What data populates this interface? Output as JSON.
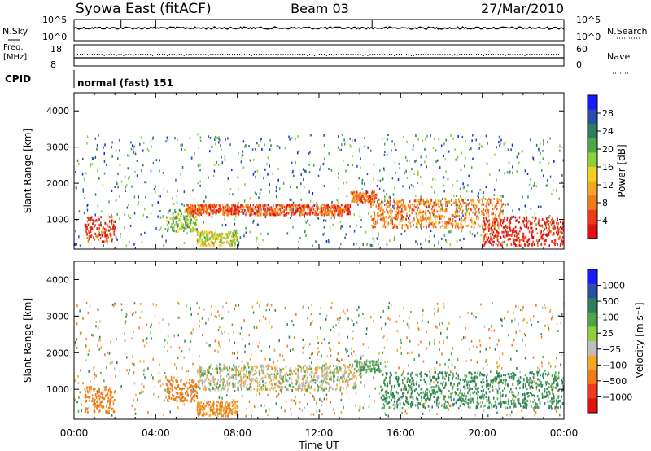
{
  "header": {
    "station": "Syowa East (fitACF)",
    "beam": "Beam 03",
    "date": "27/Mar/2010"
  },
  "panels": {
    "nsky_label": "N.Sky",
    "nsky_ticks": [
      "10^5",
      "10^0"
    ],
    "nsearch_label": "N.Search",
    "nsearch_ticks": [
      "10^5",
      "10^0"
    ],
    "freq_label": "Freq.",
    "freq_unit": "[MHz]",
    "freq_ticks": [
      "18",
      "8"
    ],
    "nave_label": "Nave",
    "nave_ticks": [
      "60",
      "0"
    ],
    "cpid_label": "CPID",
    "cpid_value": "normal (fast) 151"
  },
  "chart_data": [
    {
      "type": "heatmap",
      "name": "power",
      "ylabel": "Slant Range [km]",
      "yticks": [
        "1000",
        "2000",
        "3000",
        "4000"
      ],
      "ylim": [
        180,
        4500
      ],
      "xlim_hours": [
        0,
        24
      ],
      "colorbar_label": "Power [dB]",
      "colorbar_ticks": [
        "4",
        "8",
        "12",
        "16",
        "20",
        "24",
        "28"
      ],
      "colorbar_colors": [
        "#1a1aff",
        "#2a4fa8",
        "#2e7d5c",
        "#4aa84a",
        "#8fcf3a",
        "#f2d21a",
        "#f5a623",
        "#f27a1a",
        "#ee3a1a",
        "#e31010"
      ],
      "bands": [
        {
          "t0": 0.5,
          "t1": 2.0,
          "r0": 400,
          "r1": 1100,
          "level": 0.9
        },
        {
          "t0": 4.5,
          "t1": 6.0,
          "r0": 700,
          "r1": 1300,
          "level": 0.4
        },
        {
          "t0": 5.5,
          "t1": 13.5,
          "r0": 1150,
          "r1": 1450,
          "level": 0.85
        },
        {
          "t0": 13.5,
          "t1": 14.8,
          "r0": 1500,
          "r1": 1800,
          "level": 0.8
        },
        {
          "t0": 14.5,
          "t1": 21.0,
          "r0": 800,
          "r1": 1600,
          "level": 0.75
        },
        {
          "t0": 20.0,
          "t1": 24.0,
          "r0": 300,
          "r1": 1100,
          "level": 0.95
        },
        {
          "t0": 6.0,
          "t1": 8.0,
          "r0": 300,
          "r1": 700,
          "level": 0.5
        }
      ]
    },
    {
      "type": "heatmap",
      "name": "velocity",
      "ylabel": "Slant Range [km]",
      "yticks": [
        "1000",
        "2000",
        "3000",
        "4000"
      ],
      "ylim": [
        180,
        4500
      ],
      "xlim_hours": [
        0,
        24
      ],
      "xticks": [
        "00:00",
        "04:00",
        "08:00",
        "12:00",
        "16:00",
        "20:00",
        "00:00"
      ],
      "xlabel": "Time UT",
      "colorbar_label": "Velocity [m s⁻¹]",
      "colorbar_ticks": [
        "1000",
        "500",
        "100",
        "25",
        "−25",
        "−100",
        "−500",
        "−1000"
      ],
      "colorbar_colors": [
        "#1a1aff",
        "#2a4fa8",
        "#2e7d5c",
        "#4aa84a",
        "#8fcf3a",
        "#bebebe",
        "#f5a623",
        "#f27a1a",
        "#ee3a1a",
        "#e31010"
      ],
      "bands": [
        {
          "t0": 0.5,
          "t1": 2.0,
          "r0": 400,
          "r1": 1100,
          "v": -150
        },
        {
          "t0": 4.5,
          "t1": 6.0,
          "r0": 700,
          "r1": 1300,
          "v": -200
        },
        {
          "t0": 6.0,
          "t1": 13.8,
          "r0": 1000,
          "r1": 1700,
          "v": 0
        },
        {
          "t0": 13.8,
          "t1": 15.0,
          "r0": 1500,
          "r1": 1800,
          "v": 60
        },
        {
          "t0": 15.0,
          "t1": 24.0,
          "r0": 500,
          "r1": 1500,
          "v": 120
        },
        {
          "t0": 6.0,
          "t1": 8.0,
          "r0": 300,
          "r1": 700,
          "v": -120
        }
      ]
    }
  ]
}
